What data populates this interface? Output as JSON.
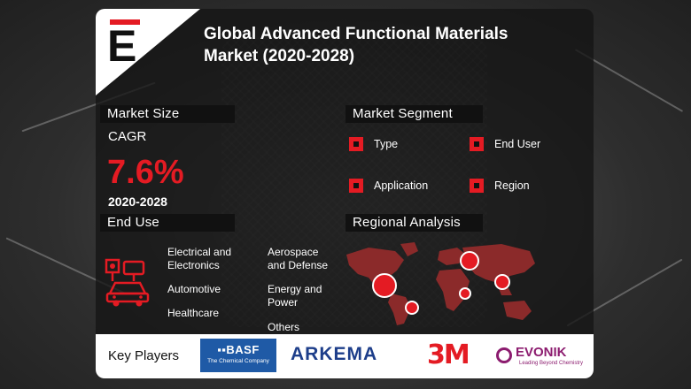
{
  "header": {
    "logo_letter": "E",
    "title_line1": "Global Advanced Functional Materials",
    "title_line2": "Market (2020-2028)"
  },
  "market_size": {
    "label": "Market Size",
    "cagr_label": "CAGR",
    "cagr_value": "7.6%",
    "period": "2020-2028"
  },
  "market_segment": {
    "label": "Market Segment",
    "items": [
      "Type",
      "End User",
      "Application",
      "Region"
    ]
  },
  "end_use": {
    "label": "End Use",
    "col1": [
      {
        "l1": "Electrical and",
        "l2": "Electronics"
      },
      {
        "l1": "Automotive",
        "l2": ""
      },
      {
        "l1": "Healthcare",
        "l2": ""
      }
    ],
    "col2": [
      {
        "l1": "Aerospace",
        "l2": "and Defense"
      },
      {
        "l1": "Energy and",
        "l2": "Power"
      },
      {
        "l1": "Others",
        "l2": ""
      }
    ]
  },
  "regional_analysis": {
    "label": "Regional Analysis"
  },
  "key_players": {
    "label": "Key Players",
    "basf_name": "BASF",
    "basf_tagline": "The Chemical Company",
    "arkema": "ARKEMA",
    "m3": "3M",
    "evonik": "EVONIK",
    "evonik_tagline": "Leading Beyond Chemistry"
  },
  "colors": {
    "accent": "#e41b23",
    "panel": "#111111",
    "basf_blue": "#1f5aa6",
    "arkema_blue": "#1d3e8a",
    "evonik_purple": "#8c1c6f"
  }
}
